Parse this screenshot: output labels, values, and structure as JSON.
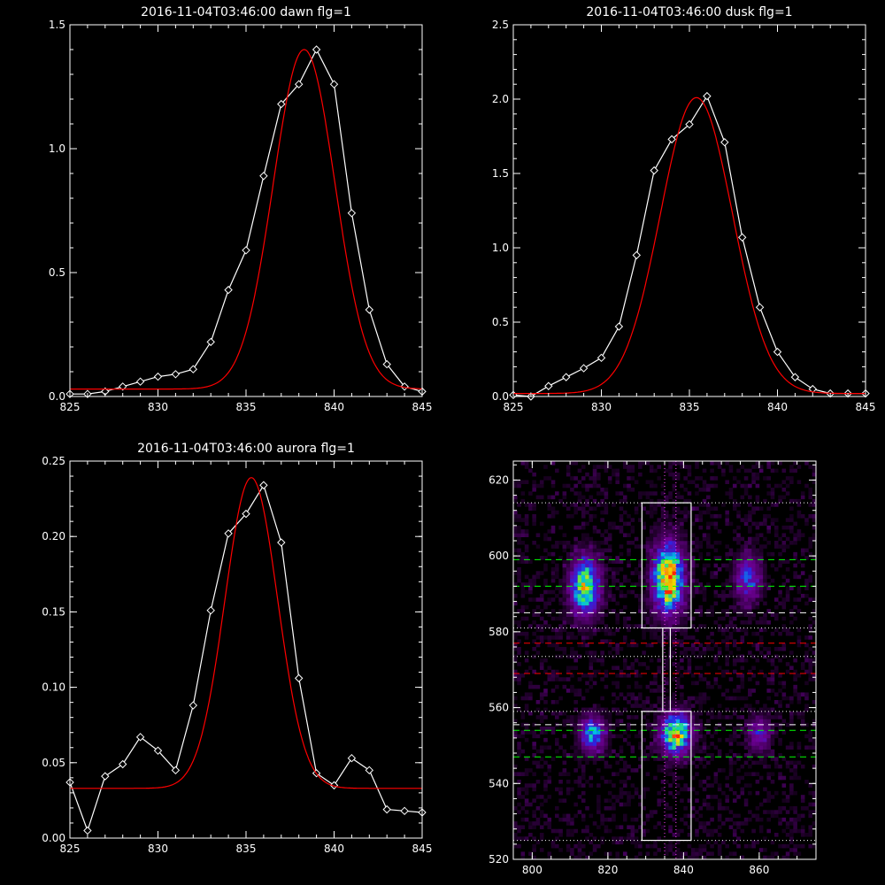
{
  "chart_data": [
    {
      "type": "line",
      "title": "2016-11-04T03:46:00 dawn flg=1",
      "xlim": [
        825,
        845
      ],
      "ylim": [
        0,
        1.5
      ],
      "xticks": [
        "825",
        "830",
        "835",
        "840",
        "845"
      ],
      "yticks": [
        "0.0",
        "0.5",
        "1.0",
        "1.5"
      ],
      "series": [
        {
          "color": "#ffffff",
          "marker": "diamond",
          "x": [
            825,
            826,
            827,
            828,
            829,
            830,
            831,
            832,
            833,
            834,
            835,
            836,
            837,
            838,
            839,
            840,
            841,
            842,
            843,
            844,
            845
          ],
          "y": [
            0.01,
            0.01,
            0.02,
            0.04,
            0.06,
            0.08,
            0.09,
            0.11,
            0.22,
            0.43,
            0.59,
            0.89,
            1.18,
            1.26,
            1.4,
            1.26,
            0.74,
            0.35,
            0.13,
            0.04,
            0.02
          ]
        },
        {
          "color": "#ff0000",
          "type": "gaussian",
          "amp": 1.37,
          "center": 838.3,
          "sigma": 1.75,
          "base": 0.03
        }
      ]
    },
    {
      "type": "line",
      "title": "2016-11-04T03:46:00 dusk flg=1",
      "xlim": [
        825,
        845
      ],
      "ylim": [
        0,
        2.5
      ],
      "xticks": [
        "825",
        "830",
        "835",
        "840",
        "845"
      ],
      "yticks": [
        "0.0",
        "0.5",
        "1.0",
        "1.5",
        "2.0",
        "2.5"
      ],
      "series": [
        {
          "color": "#ffffff",
          "marker": "diamond",
          "x": [
            825,
            826,
            827,
            828,
            829,
            830,
            831,
            832,
            833,
            834,
            835,
            836,
            837,
            838,
            839,
            840,
            841,
            842,
            843,
            844,
            845
          ],
          "y": [
            0.01,
            0.0,
            0.07,
            0.13,
            0.19,
            0.26,
            0.47,
            0.95,
            1.52,
            1.73,
            1.83,
            2.02,
            1.71,
            1.07,
            0.6,
            0.3,
            0.13,
            0.05,
            0.02,
            0.02,
            0.02
          ]
        },
        {
          "color": "#ff0000",
          "type": "gaussian",
          "amp": 1.99,
          "center": 835.4,
          "sigma": 2.05,
          "base": 0.02
        }
      ]
    },
    {
      "type": "line",
      "title": "2016-11-04T03:46:00 aurora flg=1",
      "xlim": [
        825,
        845
      ],
      "ylim": [
        0,
        0.25
      ],
      "xticks": [
        "825",
        "830",
        "835",
        "840",
        "845"
      ],
      "yticks": [
        "0.00",
        "0.05",
        "0.10",
        "0.15",
        "0.20",
        "0.25"
      ],
      "series": [
        {
          "color": "#ffffff",
          "marker": "diamond",
          "x": [
            825,
            826,
            827,
            828,
            829,
            830,
            831,
            832,
            833,
            834,
            835,
            836,
            837,
            838,
            839,
            840,
            841,
            842,
            843,
            844,
            845
          ],
          "y": [
            0.037,
            0.005,
            0.041,
            0.049,
            0.067,
            0.058,
            0.045,
            0.088,
            0.151,
            0.202,
            0.215,
            0.234,
            0.196,
            0.106,
            0.043,
            0.035,
            0.053,
            0.045,
            0.019,
            0.018,
            0.017
          ]
        },
        {
          "color": "#ff0000",
          "type": "gaussian",
          "amp": 0.206,
          "center": 835.3,
          "sigma": 1.5,
          "base": 0.033
        }
      ]
    },
    {
      "type": "heatmap",
      "title": "",
      "xlim": [
        795,
        875
      ],
      "ylim": [
        520,
        625
      ],
      "xticks": [
        "800",
        "820",
        "840",
        "860"
      ],
      "yticks": [
        "520",
        "540",
        "560",
        "580",
        "600",
        "620"
      ],
      "blobs": [
        {
          "x": 814,
          "y": 592,
          "sx": 2.5,
          "sy": 5,
          "amp": 0.78
        },
        {
          "x": 836,
          "y": 594,
          "sx": 2.6,
          "sy": 6,
          "amp": 1.0
        },
        {
          "x": 857,
          "y": 594,
          "sx": 2.2,
          "sy": 4,
          "amp": 0.45
        },
        {
          "x": 816,
          "y": 553,
          "sx": 2.2,
          "sy": 3,
          "amp": 0.55
        },
        {
          "x": 838,
          "y": 553,
          "sx": 2.6,
          "sy": 3.5,
          "amp": 0.85
        },
        {
          "x": 860,
          "y": 553,
          "sx": 2.0,
          "sy": 3,
          "amp": 0.35
        }
      ],
      "boxes": [
        {
          "x0": 829,
          "x1": 842,
          "y0": 581,
          "y1": 614,
          "color": "#ffffff"
        },
        {
          "x0": 829,
          "x1": 842,
          "y0": 525,
          "y1": 559,
          "color": "#ffffff"
        },
        {
          "x0": 834.5,
          "x1": 836.5,
          "y0": 559,
          "y1": 581,
          "color": "#ffffff"
        }
      ],
      "hlines": [
        {
          "y": 599,
          "color": "#00ff00",
          "style": "dash"
        },
        {
          "y": 592,
          "color": "#00ff00",
          "style": "dash"
        },
        {
          "y": 585,
          "color": "#ffffff",
          "style": "dash"
        },
        {
          "y": 577,
          "color": "#ff0000",
          "style": "dash"
        },
        {
          "y": 569,
          "color": "#ff0000",
          "style": "dash"
        },
        {
          "y": 555.5,
          "color": "#ffffff",
          "style": "dash"
        },
        {
          "y": 554,
          "color": "#00ff00",
          "style": "dash"
        },
        {
          "y": 547,
          "color": "#00ff00",
          "style": "dash"
        },
        {
          "y": 614,
          "color": "#ffffff",
          "style": "dot"
        },
        {
          "y": 581,
          "color": "#ffffff",
          "style": "dot"
        },
        {
          "y": 573.5,
          "color": "#ffffff",
          "style": "dot"
        },
        {
          "y": 559,
          "color": "#ffffff",
          "style": "dot"
        },
        {
          "y": 525,
          "color": "#ffffff",
          "style": "dot"
        }
      ],
      "vlines": [
        {
          "x": 835,
          "color": "#ff44ff",
          "style": "dot"
        },
        {
          "x": 838,
          "color": "#ff44ff",
          "style": "dot"
        }
      ]
    }
  ]
}
